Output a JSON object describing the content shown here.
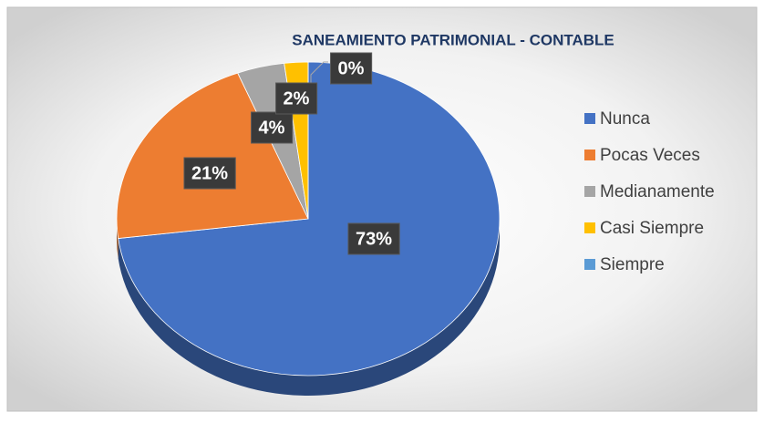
{
  "chart_data": {
    "type": "pie",
    "title": "SANEAMIENTO PATRIMONIAL - CONTABLE",
    "categories": [
      "Nunca",
      "Pocas Veces",
      "Medianamente",
      "Casi Siempre",
      "Siempre"
    ],
    "values": [
      73,
      21,
      4,
      2,
      0
    ],
    "value_labels": [
      "73%",
      "21%",
      "4%",
      "2%",
      "0%"
    ],
    "colors": [
      "#4472c4",
      "#ed7d31",
      "#a5a5a5",
      "#ffc000",
      "#5b9bd5"
    ],
    "legend": "right"
  }
}
